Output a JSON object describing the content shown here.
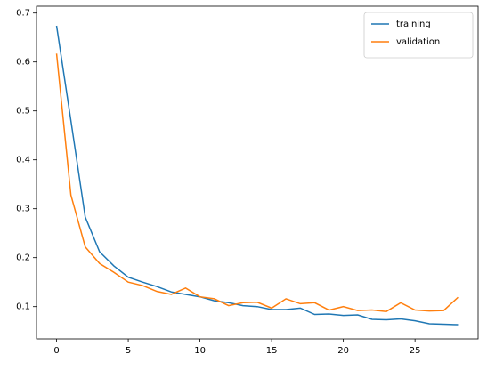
{
  "chart_data": {
    "type": "line",
    "x": [
      0,
      1,
      2,
      3,
      4,
      5,
      6,
      7,
      8,
      9,
      10,
      11,
      12,
      13,
      14,
      15,
      16,
      17,
      18,
      19,
      20,
      21,
      22,
      23,
      24,
      25,
      26,
      27,
      28
    ],
    "series": [
      {
        "name": "training",
        "color": "#1f77b4",
        "values": [
          0.674,
          0.48,
          0.283,
          0.212,
          0.183,
          0.16,
          0.15,
          0.141,
          0.13,
          0.125,
          0.12,
          0.112,
          0.108,
          0.102,
          0.1,
          0.094,
          0.094,
          0.097,
          0.084,
          0.085,
          0.082,
          0.083,
          0.074,
          0.073,
          0.075,
          0.071,
          0.065,
          0.064,
          0.063
        ]
      },
      {
        "name": "validation",
        "color": "#ff7f0e",
        "values": [
          0.617,
          0.328,
          0.222,
          0.188,
          0.17,
          0.15,
          0.143,
          0.131,
          0.125,
          0.138,
          0.12,
          0.116,
          0.102,
          0.108,
          0.109,
          0.097,
          0.116,
          0.106,
          0.108,
          0.093,
          0.1,
          0.092,
          0.093,
          0.09,
          0.108,
          0.093,
          0.091,
          0.092,
          0.119
        ]
      }
    ],
    "xlim": [
      -1.4,
      29.4
    ],
    "xticks": [
      0,
      5,
      10,
      15,
      20,
      25
    ],
    "ylim": [
      0.034,
      0.714
    ],
    "yticks": [
      0.1,
      0.2,
      0.3,
      0.4,
      0.5,
      0.6,
      0.7
    ],
    "legend": "upper right"
  }
}
